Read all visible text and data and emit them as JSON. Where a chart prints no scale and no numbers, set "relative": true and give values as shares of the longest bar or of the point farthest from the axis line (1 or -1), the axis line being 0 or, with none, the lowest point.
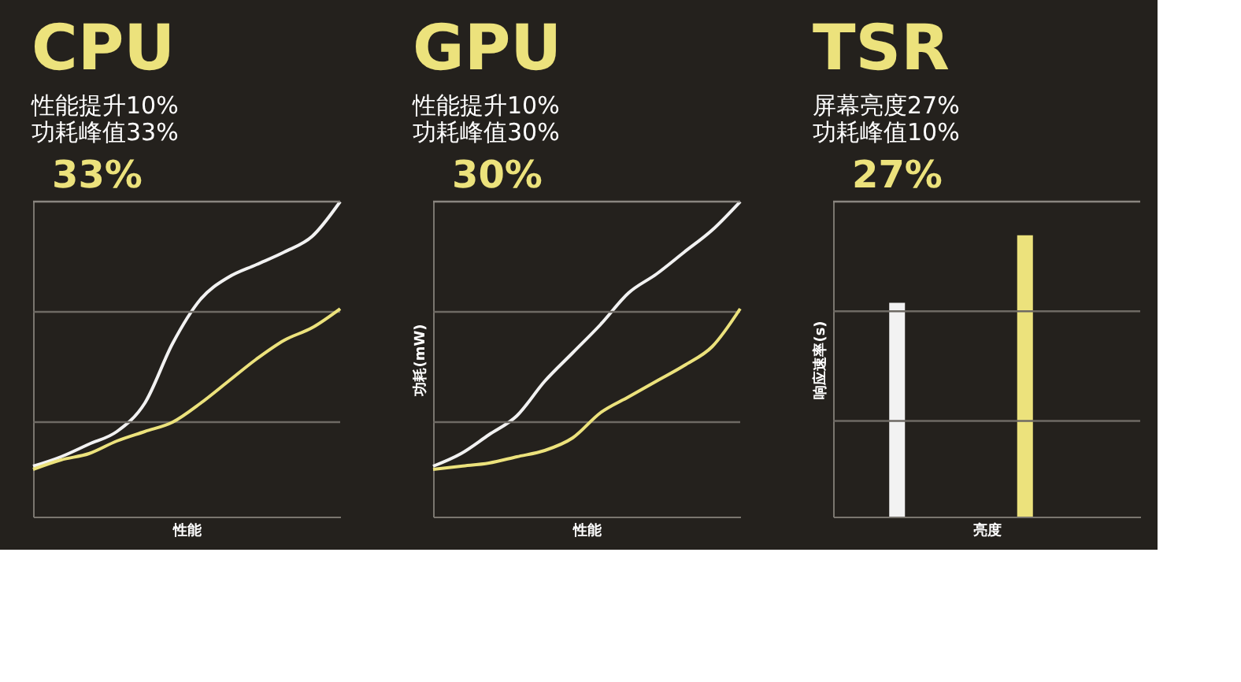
{
  "chart_data": [
    {
      "type": "line",
      "title": "CPU",
      "subtitle": "性能提升10%\n功耗峰值33%",
      "xlabel": "性能",
      "relative": true,
      "tick_labels": false,
      "annotations": [
        "33%"
      ],
      "categories": [
        null,
        null,
        null,
        null,
        null,
        null,
        null,
        null,
        null,
        null,
        null,
        null
      ],
      "series": [
        {
          "color": "#f2f2f2",
          "values": [
            0.16,
            0.19,
            0.23,
            0.27,
            0.36,
            0.55,
            0.69,
            0.76,
            0.8,
            0.84,
            0.89,
            1.0
          ]
        },
        {
          "color": "#ece27c",
          "values": [
            0.15,
            0.18,
            0.2,
            0.24,
            0.27,
            0.3,
            0.36,
            0.43,
            0.5,
            0.56,
            0.6,
            0.66
          ]
        }
      ],
      "ref_lines": [
        {
          "axis": "y",
          "value": 0.3,
          "color": "#6e6a64"
        },
        {
          "axis": "y",
          "value": 0.65,
          "color": "#6e6a64"
        },
        {
          "axis": "y",
          "value": 1.0,
          "color": "#8a8680"
        }
      ]
    },
    {
      "type": "line",
      "title": "GPU",
      "subtitle": "性能提升10%\n功耗峰值30%",
      "xlabel": "性能",
      "ylabel": "功耗(mW)",
      "relative": true,
      "tick_labels": false,
      "annotations": [
        "30%"
      ],
      "categories": [
        null,
        null,
        null,
        null,
        null,
        null,
        null,
        null,
        null,
        null,
        null,
        null
      ],
      "series": [
        {
          "color": "#f2f2f2",
          "values": [
            0.16,
            0.2,
            0.26,
            0.32,
            0.43,
            0.52,
            0.61,
            0.71,
            0.77,
            0.84,
            0.91,
            1.0
          ]
        },
        {
          "color": "#ece27c",
          "values": [
            0.15,
            0.16,
            0.17,
            0.19,
            0.21,
            0.25,
            0.33,
            0.38,
            0.43,
            0.48,
            0.54,
            0.66
          ]
        }
      ],
      "ref_lines": [
        {
          "axis": "y",
          "value": 0.3,
          "color": "#6e6a64"
        },
        {
          "axis": "y",
          "value": 0.65,
          "color": "#6e6a64"
        },
        {
          "axis": "y",
          "value": 1.0,
          "color": "#8a8680"
        }
      ]
    },
    {
      "type": "bar",
      "title": "TSR",
      "subtitle": "屏幕亮度27%\n功耗峰值10%",
      "xlabel": "亮度",
      "ylabel": "响应速率(s)",
      "relative": true,
      "tick_labels": false,
      "annotations": [
        "27%"
      ],
      "categories": [
        null,
        null
      ],
      "values": [
        0.76,
        1.0
      ],
      "colors": [
        "#f2f2f2",
        "#ece27c"
      ],
      "ref_lines": [
        {
          "axis": "y",
          "value": 0.34,
          "color": "#6e6a64"
        },
        {
          "axis": "y",
          "value": 0.73,
          "color": "#6e6a64"
        },
        {
          "axis": "y",
          "value": 1.12,
          "color": "#8a8680"
        }
      ]
    }
  ]
}
